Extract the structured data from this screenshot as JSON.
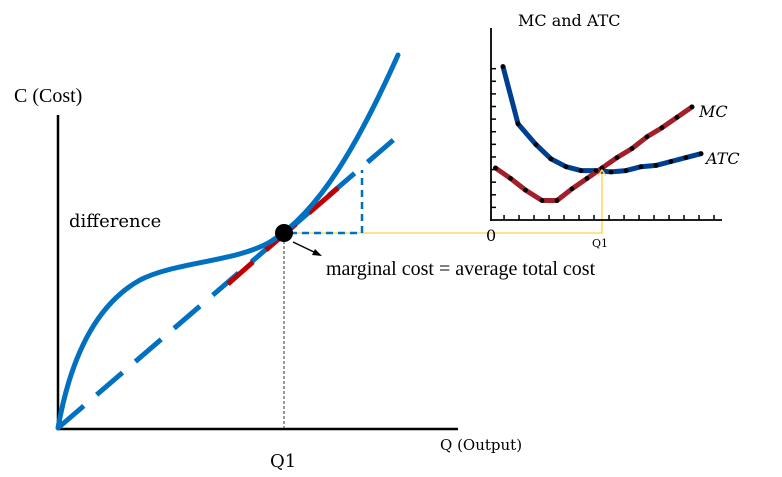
{
  "chart_data": [
    {
      "type": "line",
      "title": "",
      "xlabel": "Q (Output)",
      "ylabel": "C (Cost)",
      "x_tick_labels": [
        "Q1"
      ],
      "annotations": [
        "difference",
        "marginal cost = average total cost"
      ],
      "grid": false,
      "series": [
        {
          "name": "Total cost curve",
          "style": "solid",
          "color": "#0070C0",
          "description": "cubic total cost curve starting at origin, concave then convex"
        },
        {
          "name": "Ray from origin (average cost slope)",
          "style": "dashed",
          "color": "#0070C0"
        },
        {
          "name": "Tangent at Q1 (marginal cost slope)",
          "style": "dashed",
          "color": "#C00000"
        }
      ],
      "tangent_point": {
        "label": "Q1",
        "description": "ray from origin is tangent to total cost curve"
      }
    },
    {
      "type": "line",
      "title": "MC and ATC",
      "xlabel": "",
      "ylabel": "",
      "x_tick_labels": [
        "0",
        "Q1"
      ],
      "x_ticks_count": 15,
      "y_ticks_count": 12,
      "xlim": [
        0,
        15.4
      ],
      "ylim": [
        0,
        14.8
      ],
      "grid": false,
      "legend": "inline-right",
      "series": [
        {
          "name": "ATC",
          "color": "#003F8F",
          "x": [
            0.8,
            1.8,
            3.0,
            4.0,
            5.0,
            6.0,
            7.0,
            8.0,
            9.0,
            10.0,
            11.0,
            12.0,
            13.0,
            14.0
          ],
          "y": [
            11.8,
            7.4,
            5.8,
            4.7,
            4.1,
            3.8,
            3.8,
            3.7,
            3.8,
            4.1,
            4.2,
            4.5,
            4.8,
            5.1
          ]
        },
        {
          "name": "MC",
          "color": "#A31F2A",
          "x": [
            0.3,
            1.3,
            2.3,
            3.4,
            4.4,
            5.4,
            6.4,
            7.4,
            8.4,
            9.4,
            10.4,
            11.4,
            12.4,
            13.4
          ],
          "y": [
            4.0,
            3.2,
            2.3,
            1.5,
            1.5,
            2.4,
            3.2,
            4.0,
            4.8,
            5.5,
            6.4,
            7.1,
            7.9,
            8.7
          ]
        }
      ],
      "q1_x": 7.4
    }
  ],
  "labels": {
    "y_axis": "C (Cost)",
    "x_axis": "Q (Output)",
    "q1": "Q1",
    "difference": "difference",
    "annotation": "marginal cost = average total cost",
    "inset_title": "MC and ATC",
    "inset_zero": "0",
    "inset_q1": "Q1",
    "mc": "MC",
    "atc": "ATC"
  },
  "colors": {
    "blue": "#0070C0",
    "red": "#C00000",
    "navy": "#003F8F",
    "maroon": "#A31F2A",
    "yellow": "#FFD966",
    "black": "#000000"
  }
}
